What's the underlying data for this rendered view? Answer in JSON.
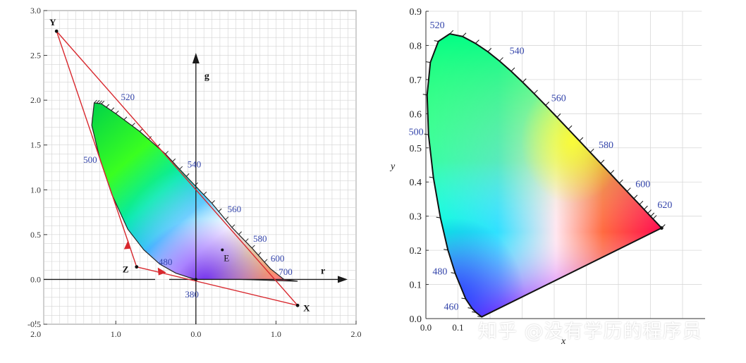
{
  "chart_data": [
    {
      "type": "scatter",
      "title": "",
      "xlabel": "r",
      "ylabel": "g",
      "xlim": [
        -1.9,
        2.0
      ],
      "ylim": [
        -0.5,
        3.0
      ],
      "x_axis_reversed": true,
      "x_tick_labels": [
        "2.0",
        "1.0",
        "0.0",
        "1.0",
        "2.0"
      ],
      "y_tick_labels": [
        "-0.5",
        "0.0",
        "0.5",
        "1.0",
        "1.5",
        "2.0",
        "2.5",
        "3.0"
      ],
      "grid": true,
      "spectral_locus_rg": [
        [
          1.27,
          -0.02
        ],
        [
          0.9,
          -0.01
        ],
        [
          0.55,
          0.0
        ],
        [
          0.1,
          0.0
        ],
        [
          0.05,
          0.0
        ],
        [
          0.0,
          0.0
        ],
        [
          -0.08,
          0.02
        ],
        [
          -0.25,
          0.07
        ],
        [
          -0.45,
          0.17
        ],
        [
          -0.65,
          0.33
        ],
        [
          -0.85,
          0.56
        ],
        [
          -1.05,
          0.95
        ],
        [
          -1.2,
          1.35
        ],
        [
          -1.3,
          1.72
        ],
        [
          -1.27,
          1.97
        ],
        [
          -1.18,
          1.96
        ],
        [
          -1.0,
          1.85
        ],
        [
          -0.7,
          1.65
        ],
        [
          -0.38,
          1.4
        ],
        [
          -0.12,
          1.15
        ],
        [
          0.2,
          0.85
        ],
        [
          0.45,
          0.58
        ],
        [
          0.7,
          0.35
        ],
        [
          0.93,
          0.12
        ],
        [
          1.1,
          0.0
        ],
        [
          1.27,
          -0.02
        ]
      ],
      "wavelength_labels": [
        {
          "label": "520",
          "r": -0.85,
          "g": 2.0
        },
        {
          "label": "500",
          "r": -1.32,
          "g": 1.3
        },
        {
          "label": "540",
          "r": -0.02,
          "g": 1.25
        },
        {
          "label": "560",
          "r": 0.48,
          "g": 0.75
        },
        {
          "label": "580",
          "r": 0.8,
          "g": 0.42
        },
        {
          "label": "600",
          "r": 1.02,
          "g": 0.2
        },
        {
          "label": "700",
          "r": 1.12,
          "g": 0.05
        },
        {
          "label": "480",
          "r": -0.38,
          "g": 0.16
        },
        {
          "label": "380",
          "r": -0.05,
          "g": -0.2
        }
      ],
      "triangle_points": [
        {
          "label": "Y",
          "r": -1.74,
          "g": 2.77
        },
        {
          "label": "X",
          "r": 1.27,
          "g": -0.29
        },
        {
          "label": "Z",
          "r": -0.74,
          "g": 0.14
        }
      ],
      "white_point": {
        "label": "E",
        "r": 0.33,
        "g": 0.33
      },
      "colors": {
        "triangle": "#d8282e",
        "label": "#3344aa",
        "axis": "#1a1a1a",
        "grid": "#d3d3d3"
      }
    },
    {
      "type": "scatter",
      "title": "",
      "xlabel": "x",
      "ylabel": "y",
      "xlim": [
        0.0,
        0.8
      ],
      "ylim": [
        0.0,
        0.9
      ],
      "x_tick_labels": [
        "0.0",
        "0.1"
      ],
      "y_tick_labels": [
        "0.0",
        "0.1",
        "0.2",
        "0.3",
        "0.4",
        "0.5",
        "0.6",
        "0.7",
        "0.8",
        "0.9"
      ],
      "grid": true,
      "spectral_locus_xy": [
        [
          0.1741,
          0.005
        ],
        [
          0.1566,
          0.0177
        ],
        [
          0.144,
          0.0297
        ],
        [
          0.1241,
          0.0578
        ],
        [
          0.0913,
          0.1327
        ],
        [
          0.0687,
          0.2007
        ],
        [
          0.0454,
          0.295
        ],
        [
          0.0235,
          0.4127
        ],
        [
          0.0082,
          0.5384
        ],
        [
          0.0039,
          0.6548
        ],
        [
          0.0139,
          0.7502
        ],
        [
          0.0389,
          0.812
        ],
        [
          0.0743,
          0.8338
        ],
        [
          0.1142,
          0.8262
        ],
        [
          0.1547,
          0.8059
        ],
        [
          0.1929,
          0.7816
        ],
        [
          0.2296,
          0.7543
        ],
        [
          0.2658,
          0.7243
        ],
        [
          0.3016,
          0.6923
        ],
        [
          0.3373,
          0.6589
        ],
        [
          0.3731,
          0.6245
        ],
        [
          0.4087,
          0.5896
        ],
        [
          0.4441,
          0.5547
        ],
        [
          0.4788,
          0.5202
        ],
        [
          0.5125,
          0.4866
        ],
        [
          0.5448,
          0.4544
        ],
        [
          0.5752,
          0.4242
        ],
        [
          0.6029,
          0.3965
        ],
        [
          0.627,
          0.3725
        ],
        [
          0.6482,
          0.3514
        ],
        [
          0.6658,
          0.334
        ],
        [
          0.6801,
          0.3197
        ],
        [
          0.6915,
          0.3083
        ],
        [
          0.7006,
          0.2993
        ],
        [
          0.7079,
          0.292
        ],
        [
          0.7347,
          0.2653
        ],
        [
          0.1741,
          0.005
        ]
      ],
      "wavelength_labels": [
        {
          "label": "520",
          "x": 0.074,
          "y": 0.834
        },
        {
          "label": "540",
          "x": 0.23,
          "y": 0.754
        },
        {
          "label": "560",
          "x": 0.373,
          "y": 0.624
        },
        {
          "label": "580",
          "x": 0.512,
          "y": 0.487
        },
        {
          "label": "600",
          "x": 0.627,
          "y": 0.373
        },
        {
          "label": "620",
          "x": 0.691,
          "y": 0.308
        },
        {
          "label": "500",
          "x": 0.008,
          "y": 0.538
        },
        {
          "label": "480",
          "x": 0.091,
          "y": 0.133
        },
        {
          "label": "460",
          "x": 0.144,
          "y": 0.03
        }
      ],
      "colors": {
        "locus": "#111111",
        "label": "#3344aa",
        "grid": "#d8d8d8"
      }
    }
  ],
  "watermark": "知乎 @没有学历的程序员"
}
